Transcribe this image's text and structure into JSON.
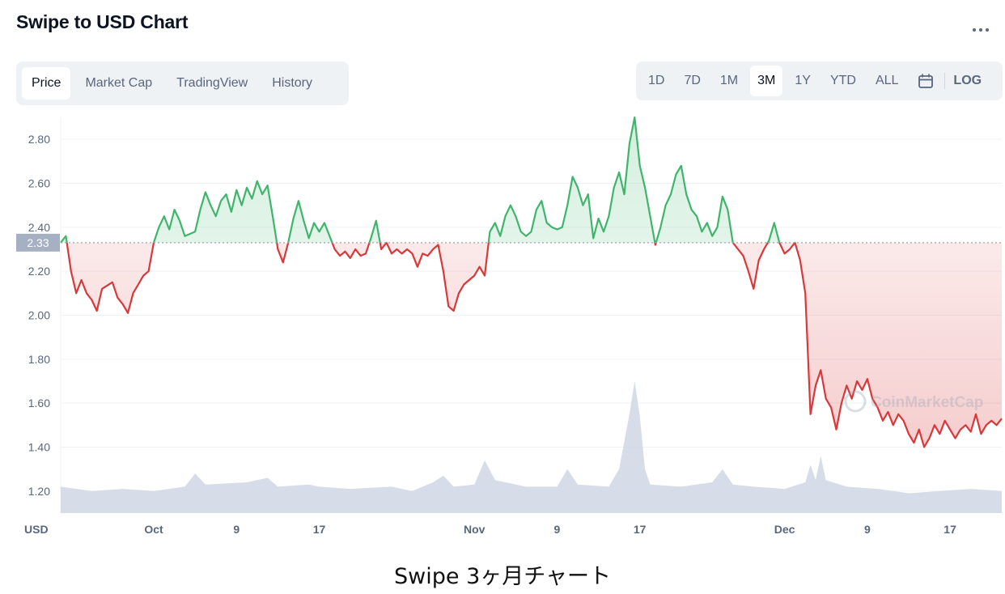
{
  "header": {
    "title": "Swipe to USD Chart",
    "more_icon": "more-horizontal-icon"
  },
  "tabs": [
    {
      "label": "Price",
      "active": true
    },
    {
      "label": "Market Cap",
      "active": false
    },
    {
      "label": "TradingView",
      "active": false
    },
    {
      "label": "History",
      "active": false
    }
  ],
  "ranges": [
    {
      "label": "1D",
      "active": false
    },
    {
      "label": "7D",
      "active": false
    },
    {
      "label": "1M",
      "active": false
    },
    {
      "label": "3M",
      "active": true
    },
    {
      "label": "1Y",
      "active": false
    },
    {
      "label": "YTD",
      "active": false
    },
    {
      "label": "ALL",
      "active": false
    }
  ],
  "calendar_icon": "calendar-icon",
  "log_label": "LOG",
  "watermark": "CoinMarketCap",
  "caption": "Swipe 3ヶ月チャート",
  "colors": {
    "up": "#3fb56b",
    "down": "#d9383a",
    "volume": "#cfd6e4",
    "text": "#58667e"
  },
  "chart_data": {
    "type": "line",
    "y_unit_label": "USD",
    "ylim": [
      1.1,
      2.9
    ],
    "y_ticks": [
      1.2,
      1.4,
      1.6,
      1.8,
      2.0,
      2.2,
      2.4,
      2.6,
      2.8
    ],
    "y_tick_labels": [
      "1.20",
      "1.40",
      "1.60",
      "1.80",
      "2.00",
      "2.20",
      "2.40",
      "2.60",
      "2.80"
    ],
    "x_range": [
      "2021-09-22",
      "2021-12-22"
    ],
    "x_ticks": [
      {
        "date": "2021-10-01",
        "label": "Oct"
      },
      {
        "date": "2021-10-09",
        "label": "9"
      },
      {
        "date": "2021-10-17",
        "label": "17"
      },
      {
        "date": "2021-11-01",
        "label": "Nov"
      },
      {
        "date": "2021-11-09",
        "label": "9"
      },
      {
        "date": "2021-11-17",
        "label": "17"
      },
      {
        "date": "2021-12-01",
        "label": "Dec"
      },
      {
        "date": "2021-12-09",
        "label": "9"
      },
      {
        "date": "2021-12-17",
        "label": "17"
      }
    ],
    "reference_price": 2.33,
    "reference_label": "2.33",
    "grid": true,
    "series": [
      {
        "values": [
          [
            "2021-09-22",
            2.33
          ],
          [
            "2021-09-22T12:00",
            2.36
          ],
          [
            "2021-09-23",
            2.2
          ],
          [
            "2021-09-23T12:00",
            2.1
          ],
          [
            "2021-09-24",
            2.16
          ],
          [
            "2021-09-24T12:00",
            2.1
          ],
          [
            "2021-09-25",
            2.07
          ],
          [
            "2021-09-25T12:00",
            2.02
          ],
          [
            "2021-09-26",
            2.12
          ],
          [
            "2021-09-27",
            2.15
          ],
          [
            "2021-09-27T12:00",
            2.08
          ],
          [
            "2021-09-28",
            2.05
          ],
          [
            "2021-09-28T12:00",
            2.01
          ],
          [
            "2021-09-29",
            2.1
          ],
          [
            "2021-09-29T12:00",
            2.14
          ],
          [
            "2021-09-30",
            2.18
          ],
          [
            "2021-09-30T12:00",
            2.2
          ],
          [
            "2021-10-01",
            2.33
          ],
          [
            "2021-10-01T12:00",
            2.4
          ],
          [
            "2021-10-02",
            2.45
          ],
          [
            "2021-10-02T12:00",
            2.39
          ],
          [
            "2021-10-03",
            2.48
          ],
          [
            "2021-10-03T12:00",
            2.43
          ],
          [
            "2021-10-04",
            2.36
          ],
          [
            "2021-10-05",
            2.38
          ],
          [
            "2021-10-05T12:00",
            2.48
          ],
          [
            "2021-10-06",
            2.56
          ],
          [
            "2021-10-06T12:00",
            2.5
          ],
          [
            "2021-10-07",
            2.45
          ],
          [
            "2021-10-07T12:00",
            2.52
          ],
          [
            "2021-10-08",
            2.55
          ],
          [
            "2021-10-08T12:00",
            2.47
          ],
          [
            "2021-10-09",
            2.57
          ],
          [
            "2021-10-09T12:00",
            2.5
          ],
          [
            "2021-10-10",
            2.58
          ],
          [
            "2021-10-10T12:00",
            2.53
          ],
          [
            "2021-10-11",
            2.61
          ],
          [
            "2021-10-11T12:00",
            2.55
          ],
          [
            "2021-10-12",
            2.59
          ],
          [
            "2021-10-12T12:00",
            2.45
          ],
          [
            "2021-10-13",
            2.3
          ],
          [
            "2021-10-13T12:00",
            2.24
          ],
          [
            "2021-10-14",
            2.33
          ],
          [
            "2021-10-14T12:00",
            2.44
          ],
          [
            "2021-10-15",
            2.52
          ],
          [
            "2021-10-15T12:00",
            2.43
          ],
          [
            "2021-10-16",
            2.35
          ],
          [
            "2021-10-16T12:00",
            2.42
          ],
          [
            "2021-10-17",
            2.38
          ],
          [
            "2021-10-17T12:00",
            2.42
          ],
          [
            "2021-10-18",
            2.36
          ],
          [
            "2021-10-18T12:00",
            2.3
          ],
          [
            "2021-10-19",
            2.27
          ],
          [
            "2021-10-19T12:00",
            2.29
          ],
          [
            "2021-10-20",
            2.26
          ],
          [
            "2021-10-20T12:00",
            2.3
          ],
          [
            "2021-10-21",
            2.27
          ],
          [
            "2021-10-21T12:00",
            2.28
          ],
          [
            "2021-10-22",
            2.35
          ],
          [
            "2021-10-22T12:00",
            2.43
          ],
          [
            "2021-10-23",
            2.3
          ],
          [
            "2021-10-23T12:00",
            2.33
          ],
          [
            "2021-10-24",
            2.28
          ],
          [
            "2021-10-24T12:00",
            2.3
          ],
          [
            "2021-10-25",
            2.28
          ],
          [
            "2021-10-25T12:00",
            2.3
          ],
          [
            "2021-10-26",
            2.28
          ],
          [
            "2021-10-26T12:00",
            2.22
          ],
          [
            "2021-10-27",
            2.28
          ],
          [
            "2021-10-27T12:00",
            2.27
          ],
          [
            "2021-10-28",
            2.3
          ],
          [
            "2021-10-28T12:00",
            2.32
          ],
          [
            "2021-10-29",
            2.2
          ],
          [
            "2021-10-29T12:00",
            2.04
          ],
          [
            "2021-10-30",
            2.02
          ],
          [
            "2021-10-30T12:00",
            2.1
          ],
          [
            "2021-10-31",
            2.14
          ],
          [
            "2021-10-31T12:00",
            2.16
          ],
          [
            "2021-11-01",
            2.18
          ],
          [
            "2021-11-01T12:00",
            2.22
          ],
          [
            "2021-11-02",
            2.18
          ],
          [
            "2021-11-02T12:00",
            2.38
          ],
          [
            "2021-11-03",
            2.42
          ],
          [
            "2021-11-03T12:00",
            2.36
          ],
          [
            "2021-11-04",
            2.45
          ],
          [
            "2021-11-04T12:00",
            2.5
          ],
          [
            "2021-11-05",
            2.45
          ],
          [
            "2021-11-05T12:00",
            2.38
          ],
          [
            "2021-11-06",
            2.36
          ],
          [
            "2021-11-06T12:00",
            2.38
          ],
          [
            "2021-11-07",
            2.48
          ],
          [
            "2021-11-07T12:00",
            2.52
          ],
          [
            "2021-11-08",
            2.42
          ],
          [
            "2021-11-08T12:00",
            2.4
          ],
          [
            "2021-11-09",
            2.39
          ],
          [
            "2021-11-09T12:00",
            2.4
          ],
          [
            "2021-11-10",
            2.5
          ],
          [
            "2021-11-10T12:00",
            2.63
          ],
          [
            "2021-11-11",
            2.58
          ],
          [
            "2021-11-11T12:00",
            2.5
          ],
          [
            "2021-11-12",
            2.55
          ],
          [
            "2021-11-12T12:00",
            2.35
          ],
          [
            "2021-11-13",
            2.44
          ],
          [
            "2021-11-13T12:00",
            2.38
          ],
          [
            "2021-11-14",
            2.45
          ],
          [
            "2021-11-14T12:00",
            2.58
          ],
          [
            "2021-11-15",
            2.65
          ],
          [
            "2021-11-15T12:00",
            2.55
          ],
          [
            "2021-11-16",
            2.78
          ],
          [
            "2021-11-16T12:00",
            2.9
          ],
          [
            "2021-11-17",
            2.68
          ],
          [
            "2021-11-17T12:00",
            2.58
          ],
          [
            "2021-11-18",
            2.45
          ],
          [
            "2021-11-18T12:00",
            2.32
          ],
          [
            "2021-11-19",
            2.4
          ],
          [
            "2021-11-19T12:00",
            2.5
          ],
          [
            "2021-11-20",
            2.55
          ],
          [
            "2021-11-20T12:00",
            2.64
          ],
          [
            "2021-11-21",
            2.68
          ],
          [
            "2021-11-21T12:00",
            2.55
          ],
          [
            "2021-11-22",
            2.48
          ],
          [
            "2021-11-22T12:00",
            2.45
          ],
          [
            "2021-11-23",
            2.38
          ],
          [
            "2021-11-23T12:00",
            2.42
          ],
          [
            "2021-11-24",
            2.36
          ],
          [
            "2021-11-24T12:00",
            2.4
          ],
          [
            "2021-11-25",
            2.54
          ],
          [
            "2021-11-25T12:00",
            2.48
          ],
          [
            "2021-11-26",
            2.33
          ],
          [
            "2021-11-26T12:00",
            2.3
          ],
          [
            "2021-11-27",
            2.27
          ],
          [
            "2021-11-27T12:00",
            2.2
          ],
          [
            "2021-11-28",
            2.12
          ],
          [
            "2021-11-28T12:00",
            2.25
          ],
          [
            "2021-11-29",
            2.3
          ],
          [
            "2021-11-29T12:00",
            2.34
          ],
          [
            "2021-11-30",
            2.42
          ],
          [
            "2021-11-30T12:00",
            2.33
          ],
          [
            "2021-12-01",
            2.28
          ],
          [
            "2021-12-01T12:00",
            2.3
          ],
          [
            "2021-12-02",
            2.33
          ],
          [
            "2021-12-02T12:00",
            2.25
          ],
          [
            "2021-12-03",
            2.1
          ],
          [
            "2021-12-03T12:00",
            1.55
          ],
          [
            "2021-12-04",
            1.68
          ],
          [
            "2021-12-04T12:00",
            1.75
          ],
          [
            "2021-12-05",
            1.62
          ],
          [
            "2021-12-05T12:00",
            1.58
          ],
          [
            "2021-12-06",
            1.48
          ],
          [
            "2021-12-06T12:00",
            1.6
          ],
          [
            "2021-12-07",
            1.68
          ],
          [
            "2021-12-07T12:00",
            1.62
          ],
          [
            "2021-12-08",
            1.7
          ],
          [
            "2021-12-08T12:00",
            1.66
          ],
          [
            "2021-12-09",
            1.71
          ],
          [
            "2021-12-09T12:00",
            1.62
          ],
          [
            "2021-12-10",
            1.58
          ],
          [
            "2021-12-10T12:00",
            1.52
          ],
          [
            "2021-12-11",
            1.56
          ],
          [
            "2021-12-11T12:00",
            1.5
          ],
          [
            "2021-12-12",
            1.55
          ],
          [
            "2021-12-12T12:00",
            1.52
          ],
          [
            "2021-12-13",
            1.46
          ],
          [
            "2021-12-13T12:00",
            1.42
          ],
          [
            "2021-12-14",
            1.48
          ],
          [
            "2021-12-14T12:00",
            1.4
          ],
          [
            "2021-12-15",
            1.44
          ],
          [
            "2021-12-15T12:00",
            1.5
          ],
          [
            "2021-12-16",
            1.46
          ],
          [
            "2021-12-16T12:00",
            1.52
          ],
          [
            "2021-12-17",
            1.48
          ],
          [
            "2021-12-17T12:00",
            1.44
          ],
          [
            "2021-12-18",
            1.48
          ],
          [
            "2021-12-18T12:00",
            1.5
          ],
          [
            "2021-12-19",
            1.47
          ],
          [
            "2021-12-19T12:00",
            1.55
          ],
          [
            "2021-12-20",
            1.46
          ],
          [
            "2021-12-20T12:00",
            1.5
          ],
          [
            "2021-12-21",
            1.52
          ],
          [
            "2021-12-21T12:00",
            1.5
          ],
          [
            "2021-12-22",
            1.53
          ]
        ]
      }
    ],
    "volume": {
      "baseline": 0.1,
      "values": [
        [
          "2021-09-22",
          0.12
        ],
        [
          "2021-09-25",
          0.1
        ],
        [
          "2021-09-28",
          0.11
        ],
        [
          "2021-10-01",
          0.1
        ],
        [
          "2021-10-04",
          0.12
        ],
        [
          "2021-10-05",
          0.18
        ],
        [
          "2021-10-06",
          0.13
        ],
        [
          "2021-10-10",
          0.14
        ],
        [
          "2021-10-12",
          0.16
        ],
        [
          "2021-10-13",
          0.12
        ],
        [
          "2021-10-16",
          0.13
        ],
        [
          "2021-10-17",
          0.12
        ],
        [
          "2021-10-20",
          0.11
        ],
        [
          "2021-10-24",
          0.12
        ],
        [
          "2021-10-26",
          0.1
        ],
        [
          "2021-10-28",
          0.14
        ],
        [
          "2021-10-29",
          0.17
        ],
        [
          "2021-10-30",
          0.12
        ],
        [
          "2021-11-01",
          0.13
        ],
        [
          "2021-11-02",
          0.24
        ],
        [
          "2021-11-03",
          0.15
        ],
        [
          "2021-11-06",
          0.12
        ],
        [
          "2021-11-09",
          0.12
        ],
        [
          "2021-11-10",
          0.2
        ],
        [
          "2021-11-11",
          0.13
        ],
        [
          "2021-11-14",
          0.12
        ],
        [
          "2021-11-15",
          0.2
        ],
        [
          "2021-11-16",
          0.45
        ],
        [
          "2021-11-16T12:00",
          0.6
        ],
        [
          "2021-11-17",
          0.44
        ],
        [
          "2021-11-17T12:00",
          0.2
        ],
        [
          "2021-11-18",
          0.13
        ],
        [
          "2021-11-21",
          0.12
        ],
        [
          "2021-11-24",
          0.14
        ],
        [
          "2021-11-25",
          0.2
        ],
        [
          "2021-11-26",
          0.13
        ],
        [
          "2021-11-28",
          0.12
        ],
        [
          "2021-12-01",
          0.11
        ],
        [
          "2021-12-03",
          0.14
        ],
        [
          "2021-12-03T12:00",
          0.22
        ],
        [
          "2021-12-04",
          0.15
        ],
        [
          "2021-12-04T12:00",
          0.26
        ],
        [
          "2021-12-05",
          0.15
        ],
        [
          "2021-12-07",
          0.12
        ],
        [
          "2021-12-10",
          0.11
        ],
        [
          "2021-12-13",
          0.09
        ],
        [
          "2021-12-16",
          0.1
        ],
        [
          "2021-12-19",
          0.11
        ],
        [
          "2021-12-22",
          0.1
        ]
      ]
    }
  }
}
